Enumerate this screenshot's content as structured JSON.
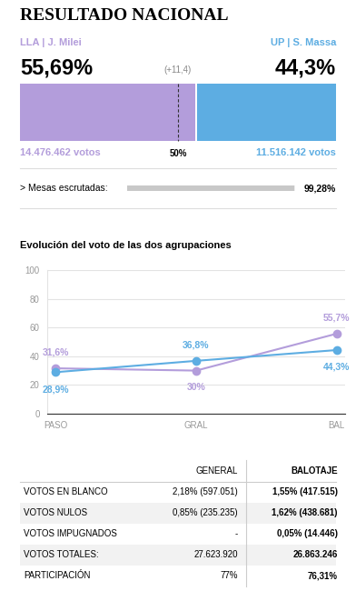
{
  "header": {
    "title": "RESULTADO NACIONAL",
    "candidates": [
      {
        "label": "LLA | J. Milei",
        "share": {
          "value": 55.69,
          "label": "55,69%"
        },
        "votes": "14.476.462 votos",
        "color": "#b39ddb"
      },
      {
        "label": "UP | S. Massa",
        "share": {
          "value": 44.3,
          "label": "44,3%"
        },
        "votes": "11.516.142 votos",
        "color": "#5dade2"
      }
    ],
    "difference": "(+11,4)",
    "majority": {
      "value": 50,
      "label": "50%"
    },
    "count": {
      "label": "> Mesas escrutadas:",
      "value": 99.28,
      "value_label": "99,28%"
    }
  },
  "chart_data": {
    "type": "line",
    "title": "Evolución del voto de las dos agrupaciones",
    "categories": [
      "PASO",
      "GRAL",
      "BAL"
    ],
    "series": [
      {
        "color": "#b39ddb",
        "marker": "o",
        "values": [
          31.6,
          30,
          55.7
        ],
        "value_labels": [
          "31,6%",
          "30%",
          "55,7%"
        ]
      },
      {
        "color": "#5dade2",
        "marker": "o",
        "values": [
          28.9,
          36.8,
          44.3
        ],
        "value_labels": [
          "28,9%",
          "36,8%",
          "44,3%"
        ]
      }
    ],
    "ylim": [
      0,
      100
    ],
    "yticks": [
      0,
      20,
      40,
      60,
      80,
      100
    ],
    "grid": true,
    "data_labels": true
  },
  "table": {
    "columns": [
      "GENERAL",
      "BALOTAJE"
    ],
    "rows": [
      [
        "VOTOS EN BLANCO",
        "2,18% (597.051)",
        "1,55% (417.515)"
      ],
      [
        "VOTOS NULOS",
        "0,85% (235.235)",
        "1,62% (438.681)"
      ],
      [
        "VOTOS IMPUGNADOS",
        "-",
        "0,05% (14.446)"
      ],
      [
        "VOTOS TOTALES:",
        "27.623.920",
        "26.863.246"
      ],
      [
        "PARTICIPACIÓN",
        "77%",
        "76,31%"
      ]
    ]
  }
}
